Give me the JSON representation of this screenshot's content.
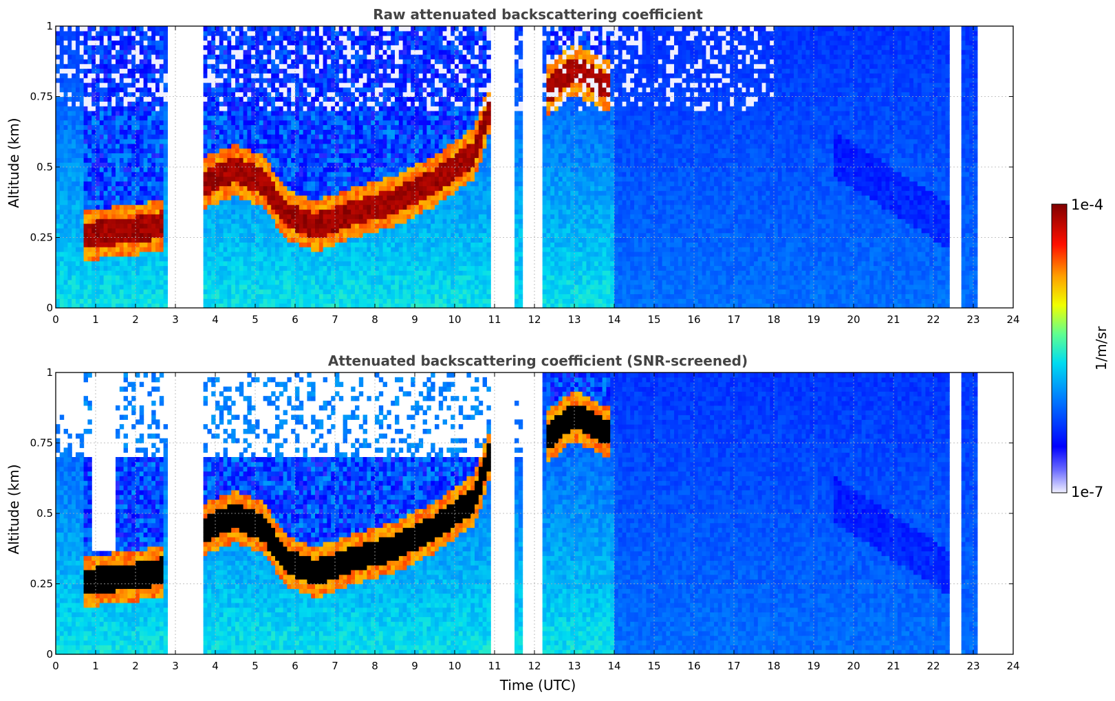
{
  "chart_data": [
    {
      "type": "heatmap",
      "title": "Raw attenuated backscattering coefficient",
      "xlabel": "",
      "ylabel": "Altitude (km)",
      "xlim": [
        0,
        24
      ],
      "ylim": [
        0,
        1
      ],
      "x_ticks": [
        "0",
        "1",
        "2",
        "3",
        "4",
        "5",
        "6",
        "7",
        "8",
        "9",
        "10",
        "11",
        "12",
        "13",
        "14",
        "15",
        "16",
        "17",
        "18",
        "19",
        "20",
        "21",
        "22",
        "23",
        "24"
      ],
      "y_ticks": [
        "0",
        "0.25",
        "0.5",
        "0.75",
        "1"
      ],
      "y_tick_values": [
        0,
        0.25,
        0.5,
        0.75,
        1
      ],
      "grid": true,
      "gaps_utc": [
        [
          2.8,
          3.75
        ],
        [
          10.95,
          11.55
        ],
        [
          11.7,
          12.25
        ],
        [
          22.45,
          22.7
        ],
        [
          23.15,
          24.0
        ]
      ],
      "layer_peak_altitude_km": {
        "times": [
          0.7,
          1.5,
          2.6,
          3.8,
          4.5,
          5.2,
          5.8,
          6.5,
          7.5,
          8.5,
          9.5,
          10.5,
          10.9,
          12.4,
          13.0,
          13.8
        ],
        "values": [
          0.26,
          0.27,
          0.29,
          0.45,
          0.49,
          0.45,
          0.33,
          0.29,
          0.34,
          0.38,
          0.45,
          0.55,
          0.72,
          0.78,
          0.85,
          0.79
        ]
      }
    },
    {
      "type": "heatmap",
      "title": "Attenuated backscattering coefficient (SNR-screened)",
      "xlabel": "Time (UTC)",
      "ylabel": "Altitude (km)",
      "xlim": [
        0,
        24
      ],
      "ylim": [
        0,
        1
      ],
      "x_ticks": [
        "0",
        "1",
        "2",
        "3",
        "4",
        "5",
        "6",
        "7",
        "8",
        "9",
        "10",
        "11",
        "12",
        "13",
        "14",
        "15",
        "16",
        "17",
        "18",
        "19",
        "20",
        "21",
        "22",
        "23",
        "24"
      ],
      "y_ticks": [
        "0",
        "0.25",
        "0.5",
        "0.75",
        "1"
      ],
      "y_tick_values": [
        0,
        0.25,
        0.5,
        0.75,
        1
      ],
      "grid": true
    }
  ],
  "colorbar": {
    "label": "1/m/sr",
    "max_label": "1e-4",
    "min_label": "1e-7",
    "colors": [
      "#e8e8ff",
      "#0000ff",
      "#00c8ff",
      "#ffff00",
      "#ff0000",
      "#800000"
    ]
  }
}
